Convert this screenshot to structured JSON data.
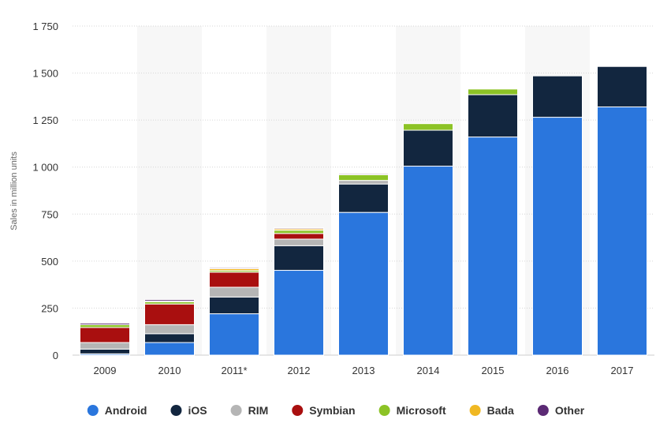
{
  "chart_data": {
    "type": "bar",
    "stacked": true,
    "categories": [
      "2009",
      "2010",
      "2011*",
      "2012",
      "2013",
      "2014",
      "2015",
      "2016",
      "2017"
    ],
    "ylabel": "Sales in million units",
    "ylim": [
      0,
      1750
    ],
    "yticks": [
      0,
      250,
      500,
      750,
      1000,
      1250,
      1500,
      1750
    ],
    "ytick_labels": [
      "0",
      "250",
      "500",
      "750",
      "1 000",
      "1 250",
      "1 500",
      "1 750"
    ],
    "grid": true,
    "legend_position": "bottom",
    "series": [
      {
        "name": "Android",
        "color": "#2a76dd",
        "values": [
          7,
          67,
          220,
          451,
          759,
          1005,
          1160,
          1265,
          1320
        ]
      },
      {
        "name": "iOS",
        "color": "#12263f",
        "values": [
          25,
          47,
          89,
          131,
          151,
          191,
          225,
          220,
          215
        ]
      },
      {
        "name": "RIM",
        "color": "#b5b5b5",
        "values": [
          35,
          48,
          52,
          35,
          19,
          0,
          0,
          0,
          0
        ]
      },
      {
        "name": "Symbian",
        "color": "#a90f0f",
        "values": [
          80,
          110,
          80,
          30,
          0,
          0,
          0,
          0,
          0
        ]
      },
      {
        "name": "Microsoft",
        "color": "#8cc326",
        "values": [
          15,
          12,
          9,
          17,
          30,
          35,
          30,
          0,
          0
        ]
      },
      {
        "name": "Bada",
        "color": "#f0b823",
        "values": [
          0,
          3,
          10,
          8,
          0,
          0,
          0,
          0,
          0
        ]
      },
      {
        "name": "Other",
        "color": "#5b2a74",
        "values": [
          8,
          8,
          5,
          5,
          5,
          0,
          0,
          0,
          0
        ]
      }
    ]
  }
}
